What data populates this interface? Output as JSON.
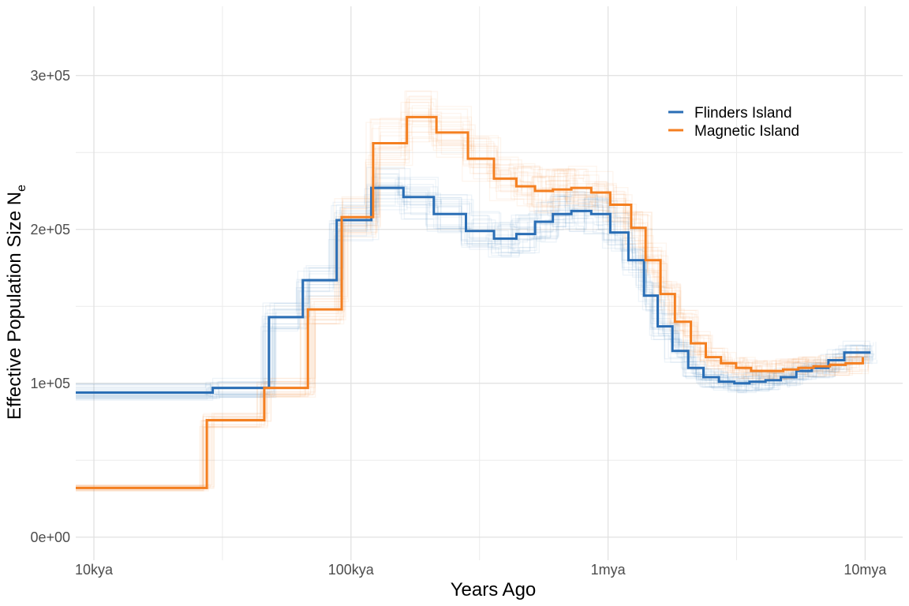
{
  "chart_data": {
    "type": "line",
    "step": true,
    "xlabel": "Years Ago",
    "ylabel": "Effective Population Size N",
    "ylabel_subscript": "e",
    "x_scale": "log",
    "x_ticks": [
      {
        "value": 10000,
        "label": "10kya"
      },
      {
        "value": 100000,
        "label": "100kya"
      },
      {
        "value": 1000000,
        "label": "1mya"
      },
      {
        "value": 10000000,
        "label": "10mya"
      }
    ],
    "y_ticks": [
      {
        "value": 0,
        "label": "0e+00"
      },
      {
        "value": 100000,
        "label": "1e+05"
      },
      {
        "value": 200000,
        "label": "2e+05"
      },
      {
        "value": 300000,
        "label": "3e+05"
      }
    ],
    "xlim": [
      8500,
      14000000
    ],
    "ylim": [
      -15000,
      345000
    ],
    "grid": true,
    "legend_position": "top-right",
    "series": [
      {
        "name": "Flinders Island",
        "color": "#2a6eb5",
        "x": [
          8500,
          29000,
          48000,
          65000,
          88000,
          120000,
          160000,
          210000,
          280000,
          360000,
          440000,
          520000,
          610000,
          720000,
          860000,
          1020000,
          1200000,
          1380000,
          1560000,
          1780000,
          2050000,
          2350000,
          2700000,
          3100000,
          3550000,
          4100000,
          4700000,
          5400000,
          6200000,
          7200000,
          8300000,
          10500000
        ],
        "y": [
          94000,
          97000,
          143000,
          167000,
          206000,
          227000,
          221000,
          210000,
          199000,
          194000,
          197000,
          205000,
          210000,
          212000,
          210000,
          198000,
          180000,
          157000,
          137000,
          121000,
          110000,
          104000,
          101000,
          100000,
          101000,
          102000,
          104000,
          108000,
          110000,
          115000,
          120000,
          120000
        ]
      },
      {
        "name": "Magnetic Island",
        "color": "#f47f20",
        "x": [
          8500,
          27500,
          46000,
          68000,
          92000,
          122000,
          165000,
          215000,
          285000,
          360000,
          440000,
          520000,
          610000,
          720000,
          860000,
          1020000,
          1230000,
          1400000,
          1600000,
          1820000,
          2100000,
          2400000,
          2750000,
          3150000,
          3600000,
          4150000,
          4800000,
          5500000,
          6300000,
          7300000,
          8400000,
          9800000
        ],
        "y": [
          32000,
          76000,
          97000,
          148000,
          208000,
          256000,
          273000,
          263000,
          246000,
          233000,
          228000,
          225000,
          226000,
          227000,
          224000,
          216000,
          201000,
          180000,
          158000,
          140000,
          126000,
          117000,
          113000,
          110000,
          108000,
          108000,
          109000,
          110000,
          111000,
          112000,
          113000,
          117000
        ]
      }
    ]
  }
}
